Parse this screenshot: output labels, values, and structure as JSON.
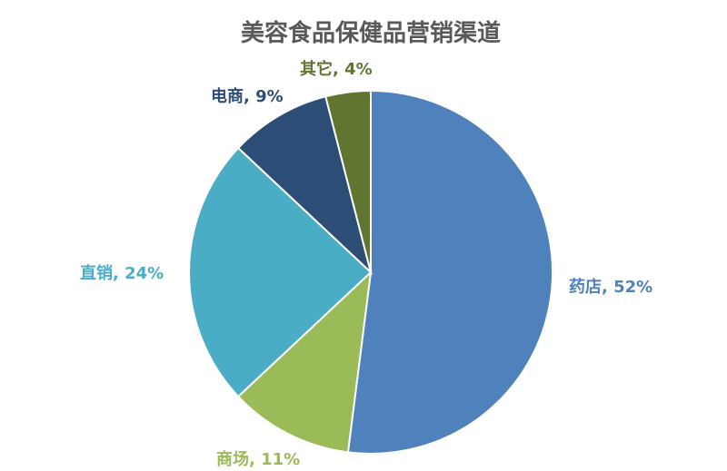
{
  "chart_data": {
    "type": "pie",
    "title": "美容食品保健品营销渠道",
    "start_angle_deg": 0,
    "direction": "clockwise",
    "slices": [
      {
        "label": "药店",
        "value": 52,
        "label_text": "药店, 52%",
        "color": "#4F81BD"
      },
      {
        "label": "商场",
        "value": 11,
        "label_text": "商场, 11%",
        "color": "#9BBB59"
      },
      {
        "label": "直销",
        "value": 24,
        "label_text": "直销, 24%",
        "color": "#4BACC6"
      },
      {
        "label": "电商",
        "value": 9,
        "label_text": "电商, 9%",
        "color": "#2C4D75"
      },
      {
        "label": "其它",
        "value": 4,
        "label_text": "其它, 4%",
        "color": "#5F7530"
      }
    ],
    "label_colors": [
      "#4F81BD",
      "#9BBB59",
      "#4BACC6",
      "#2C4D75",
      "#5F7530"
    ],
    "legend": "none",
    "data_labels": "outside"
  }
}
